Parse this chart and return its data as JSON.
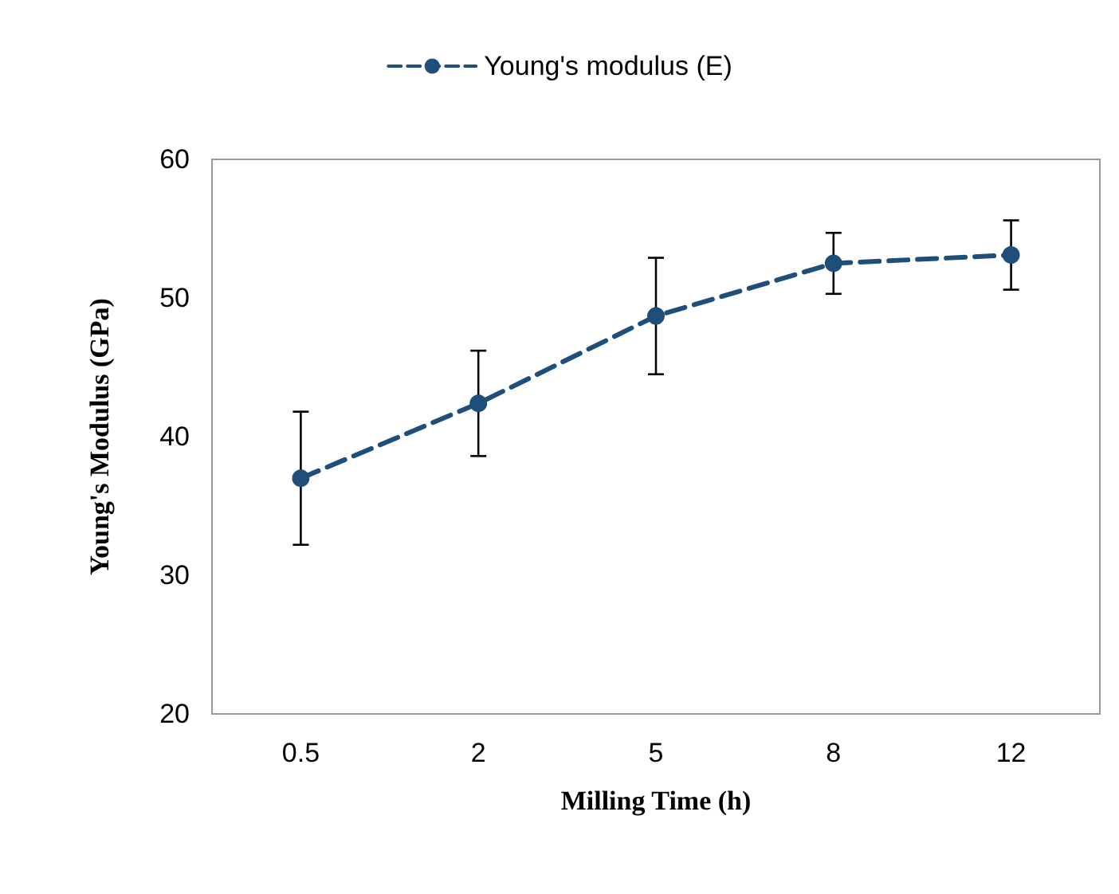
{
  "chart_data": {
    "type": "line",
    "xlabel": "Milling Time (h)",
    "ylabel": "Young's Modulus (GPa)",
    "categories": [
      "0.5",
      "2",
      "5",
      "8",
      "12"
    ],
    "series": [
      {
        "name": "Young's modulus (E)",
        "color": "#1f4e79",
        "values": [
          37.0,
          42.4,
          48.7,
          52.5,
          53.1
        ],
        "errors": [
          4.8,
          3.8,
          4.2,
          2.2,
          2.5
        ]
      }
    ],
    "ylim": [
      20,
      60
    ],
    "yticks": [
      20,
      30,
      40,
      50,
      60
    ],
    "grid": false,
    "legend": "top",
    "marker": "circle",
    "line_style": "dashed"
  }
}
